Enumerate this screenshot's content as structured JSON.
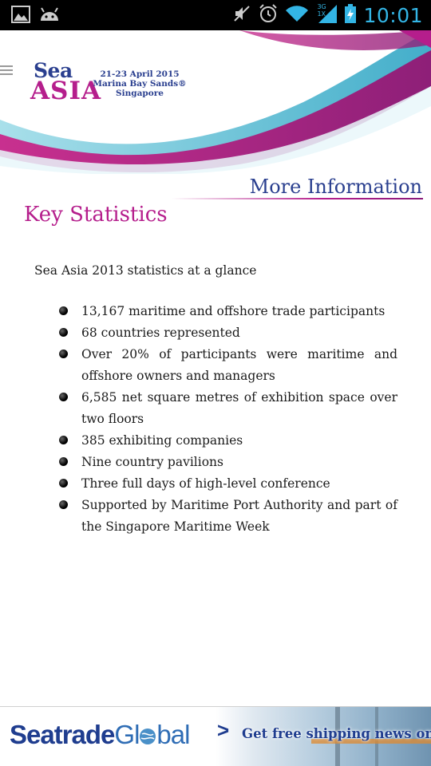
{
  "status_bar": {
    "time": "10:01",
    "network": "3G",
    "network_sub": "1X",
    "icons": [
      "image-notification-icon",
      "android-notification-icon",
      "mute-icon",
      "alarm-icon",
      "wifi-icon",
      "signal-icon",
      "battery-charging-icon"
    ]
  },
  "header": {
    "logo_line1": "Sea",
    "logo_line2": "ASIA",
    "dates": "21-23 April 2015",
    "venue": "Marina Bay Sands®",
    "city": "Singapore",
    "colors": {
      "navy": "#2a3f8f",
      "magenta": "#b51e8c",
      "teal": "#4fc3d6"
    }
  },
  "more_info_label": "More Information",
  "page_title": "Key Statistics",
  "intro": "Sea Asia 2013 statistics at a glance",
  "stats": [
    "13,167 maritime and offshore trade participants",
    "68 countries represented",
    "Over 20% of participants were maritime and offshore owners and managers",
    "6,585 net square metres of exhibition space over two floors",
    "385 exhibiting companies",
    "Nine country pavilions",
    "Three full days of high-level conference",
    "Supported by Maritime Port Authority and part of the Singapore Maritime Week"
  ],
  "ad": {
    "brand_part1": "Seatrade",
    "brand_part2": "Gl",
    "brand_part3": "bal",
    "arrow": ">",
    "tagline": "Get free shipping news online"
  }
}
